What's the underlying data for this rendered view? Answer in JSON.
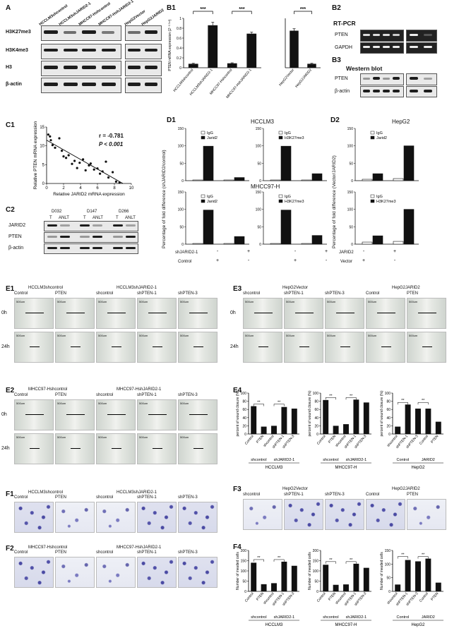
{
  "panels": {
    "A": {
      "label": "A",
      "blot_rows": [
        "H3K27me3",
        "H3K4me3",
        "H3",
        "β-actin"
      ],
      "lanes_left": [
        "HCCLM3shcontrol",
        "HCCLM3shJARID2-1",
        "MHCC97-Hshcontrol",
        "MHCC97-HshJARID2-1"
      ],
      "lanes_right": [
        "HepG2Vector",
        "HepG2JARID2"
      ]
    },
    "B1": {
      "label": "B1"
    },
    "B2": {
      "label": "B2",
      "title": "RT-PCR",
      "rows": [
        "PTEN",
        "GAPDH"
      ]
    },
    "B3": {
      "label": "B3",
      "title": "Western blot",
      "rows": [
        "PTEN",
        "β-actin"
      ]
    },
    "C1": {
      "label": "C1",
      "r_text": "r = -0.781",
      "p_text": "P < 0.001"
    },
    "C2": {
      "label": "C2",
      "groups": [
        "D032",
        "D147",
        "D266"
      ],
      "lanes": [
        "T",
        "ANLT",
        "T",
        "ANLT",
        "T",
        "ANLT"
      ],
      "rows": [
        "JARID2",
        "PTEN",
        "β-actin"
      ]
    },
    "D1": {
      "label": "D1",
      "title": "HCCLM3",
      "title2": "MHCC97-H",
      "ylabel": "Percentage of fold difference (shJARID2/control)",
      "row1": "shJARID2-1",
      "row2": "Control"
    },
    "D2": {
      "label": "D2",
      "title": "HepG2",
      "ylabel": "Percentage of fold difference (Vector/JARID2)",
      "row1": "JARID2",
      "row2": "Vector"
    },
    "E1": {
      "label": "E1",
      "header_left": "HCCLM3shcontrol",
      "header_right": "HCCLM3shJARID2-1",
      "cols": [
        "Control",
        "PTEN",
        "shcontrol",
        "shPTEN-1",
        "shPTEN-3"
      ]
    },
    "E2": {
      "label": "E2",
      "header_left": "MHCC97-Hshcontrol",
      "header_right": "MHCC97-HshJARID2-1",
      "cols": [
        "Control",
        "PTEN",
        "shcontrol",
        "shPTEN-1",
        "shPTEN-3"
      ]
    },
    "E3": {
      "label": "E3",
      "header_left": "HepG2Vector",
      "header_right": "HepG2JARID2",
      "cols": [
        "shcontrol",
        "shPTEN-1",
        "shPTEN-3",
        "Control",
        "PTEN"
      ]
    },
    "E4": {
      "label": "E4",
      "ylabel": "percent of wound closure (%)"
    },
    "F1": {
      "label": "F1",
      "header_left": "HCCLM3shcontrol",
      "header_right": "HCCLM3shJARID2-1",
      "cols": [
        "Control",
        "PTEN",
        "shcontrol",
        "shPTEN-1",
        "shPTEN-3"
      ]
    },
    "F2": {
      "label": "F2",
      "header_left": "MHCC97-Hshcontrol",
      "header_right": "MHCC97-HshJARID2-1",
      "cols": [
        "Control",
        "PTEN",
        "shcontrol",
        "shPTEN-1",
        "shPTEN-3"
      ]
    },
    "F3": {
      "label": "F3",
      "header_left": "HepG2Vector",
      "header_right": "HepG2JARID2",
      "cols": [
        "shcontrol",
        "shPTEN-1",
        "shPTEN-3",
        "Control",
        "PTEN"
      ]
    },
    "F4": {
      "label": "F4",
      "ylabel": "Number of invaded cells"
    },
    "time_labels": [
      "0h",
      "24h"
    ],
    "scale_text": "500um"
  },
  "chart_data": [
    {
      "id": "B1-left",
      "type": "bar",
      "categories": [
        "HCCLM3shcontrol",
        "HCCLM3shJARID2-1",
        "MHCC97-Hshcontrol",
        "MHCC97-HshJARID2-1"
      ],
      "values": [
        0.08,
        0.86,
        0.09,
        0.69
      ],
      "errors": [
        0.01,
        0.06,
        0.01,
        0.03
      ],
      "ylabel": "PTEN mRNA expression (2⁻ᐞᐞᶜᵗ)",
      "ylim": [
        0,
        1.0
      ],
      "yticks": [
        0.0,
        0.2,
        0.4,
        0.6,
        0.8,
        1.0
      ],
      "sig": [
        "***",
        "***"
      ]
    },
    {
      "id": "B1-right",
      "type": "bar",
      "categories": [
        "HepG2Vector",
        "HepG2JARID2"
      ],
      "values": [
        0.75,
        0.08
      ],
      "errors": [
        0.04,
        0.01
      ],
      "ylim": [
        0,
        1.0
      ],
      "sig": [
        "***"
      ]
    },
    {
      "id": "C1",
      "type": "scatter",
      "xlabel": "Relative JARID2 mRNA expression",
      "ylabel": "Relative PTEN mRNA expression",
      "xlim": [
        0,
        10
      ],
      "ylim": [
        0,
        15
      ],
      "xticks": [
        0,
        2,
        4,
        6,
        8,
        10
      ],
      "yticks": [
        0,
        5,
        10,
        15
      ],
      "x": [
        0.2,
        0.4,
        0.5,
        0.7,
        1.0,
        1.5,
        1.8,
        2.0,
        2.3,
        2.6,
        3.0,
        3.3,
        3.6,
        3.9,
        4.3,
        4.6,
        5.0,
        5.2,
        5.6,
        6.0,
        6.3,
        6.6,
        7.0,
        7.3,
        7.8,
        8.2,
        8.6
      ],
      "y": [
        13.0,
        12.5,
        11.5,
        10.2,
        9.5,
        12.0,
        8.7,
        7.2,
        6.8,
        7.5,
        5.2,
        6.0,
        4.1,
        5.5,
        6.4,
        3.5,
        4.8,
        5.3,
        3.7,
        4.0,
        2.6,
        3.2,
        5.8,
        1.6,
        3.0,
        0.5,
        0.2
      ],
      "fit": [
        [
          0,
          11.5
        ],
        [
          9,
          0
        ]
      ]
    },
    {
      "id": "D1-HCCLM3-Jarid2",
      "type": "bar",
      "series": [
        {
          "name": "IgG",
          "values": [
            2,
            2
          ]
        },
        {
          "name": "Jarid2",
          "values": [
            99,
            9
          ]
        }
      ],
      "categories": [
        "Control",
        "shJARID2-1"
      ],
      "ylim": [
        0,
        150
      ],
      "yticks": [
        0,
        50,
        100,
        150
      ]
    },
    {
      "id": "D1-HCCLM3-H3K27me3",
      "type": "bar",
      "series": [
        {
          "name": "IgG",
          "values": [
            2,
            2
          ]
        },
        {
          "name": "H3K27me3",
          "values": [
            99,
            20
          ]
        }
      ],
      "categories": [
        "Control",
        "shJARID2-1"
      ],
      "ylim": [
        0,
        150
      ],
      "yticks": [
        0,
        50,
        100,
        150
      ]
    },
    {
      "id": "D1-MHCC97H-Jarid2",
      "type": "bar",
      "series": [
        {
          "name": "IgG",
          "values": [
            2,
            2
          ]
        },
        {
          "name": "Jarid2",
          "values": [
            98,
            22
          ]
        }
      ],
      "categories": [
        "Control",
        "shJARID2-1"
      ],
      "ylim": [
        0,
        150
      ],
      "yticks": [
        0,
        50,
        100,
        150
      ]
    },
    {
      "id": "D1-MHCC97H-H3K27me3",
      "type": "bar",
      "series": [
        {
          "name": "IgG",
          "values": [
            2,
            2
          ]
        },
        {
          "name": "H3K27me3",
          "values": [
            98,
            25
          ]
        }
      ],
      "categories": [
        "Control",
        "shJARID2-1"
      ],
      "ylim": [
        0,
        150
      ],
      "yticks": [
        0,
        50,
        100,
        150
      ]
    },
    {
      "id": "D2-HepG2-Jarid2",
      "type": "bar",
      "series": [
        {
          "name": "IgG",
          "values": [
            4,
            6
          ]
        },
        {
          "name": "Jarid2",
          "values": [
            20,
            100
          ]
        }
      ],
      "categories": [
        "Vector",
        "JARID2"
      ],
      "ylim": [
        0,
        150
      ],
      "yticks": [
        0,
        50,
        100,
        150
      ]
    },
    {
      "id": "D2-HepG2-H3K27me3",
      "type": "bar",
      "series": [
        {
          "name": "IgG",
          "values": [
            6,
            8
          ]
        },
        {
          "name": "H3K27me3",
          "values": [
            24,
            100
          ]
        }
      ],
      "categories": [
        "Vector",
        "JARID2"
      ],
      "ylim": [
        0,
        150
      ],
      "yticks": [
        0,
        50,
        100,
        150
      ]
    },
    {
      "id": "E4-HCCLM3",
      "type": "bar",
      "categories": [
        "Control",
        "PTEN",
        "shcontrol",
        "shPTEN-1",
        "shPTEN-3"
      ],
      "values": [
        68,
        18,
        20,
        66,
        62
      ],
      "ylim": [
        0,
        100
      ],
      "yticks": [
        0,
        20,
        40,
        60,
        80,
        100
      ],
      "group": "HCCLM3",
      "subgroups": [
        "shcontrol",
        "shJARID2-1"
      ]
    },
    {
      "id": "E4-MHCC97H",
      "type": "bar",
      "categories": [
        "Control",
        "PTEN",
        "shcontrol",
        "shPTEN-1",
        "shPTEN-3"
      ],
      "values": [
        83,
        20,
        24,
        84,
        77
      ],
      "ylim": [
        0,
        100
      ],
      "yticks": [
        0,
        20,
        40,
        60,
        80,
        100
      ],
      "group": "MHCC97-H",
      "subgroups": [
        "shcontrol",
        "shJARID2-1"
      ]
    },
    {
      "id": "E4-HepG2",
      "type": "bar",
      "categories": [
        "shcontrol",
        "shPTEN-1",
        "shPTEN-3",
        "Control",
        "PTEN"
      ],
      "values": [
        18,
        72,
        62,
        62,
        30
      ],
      "ylim": [
        0,
        100
      ],
      "yticks": [
        0,
        20,
        40,
        60,
        80,
        100
      ],
      "group": "HepG2",
      "subgroups": [
        "Control",
        "JARID2"
      ]
    },
    {
      "id": "F4-HCCLM3",
      "type": "bar",
      "categories": [
        "Control",
        "PTEN",
        "shcontrol",
        "shPTEN-1",
        "shPTEN-3"
      ],
      "values": [
        140,
        35,
        40,
        145,
        125
      ],
      "ylim": [
        0,
        200
      ],
      "yticks": [
        0,
        50,
        100,
        150,
        200
      ],
      "group": "HCCLM3",
      "subgroups": [
        "shcontrol",
        "shJARID2-1"
      ]
    },
    {
      "id": "F4-MHCC97H",
      "type": "bar",
      "categories": [
        "Control",
        "PTEN",
        "shcontrol",
        "shPTEN-1",
        "shPTEN-3"
      ],
      "values": [
        130,
        32,
        34,
        135,
        115
      ],
      "ylim": [
        0,
        200
      ],
      "yticks": [
        0,
        50,
        100,
        150,
        200
      ],
      "group": "MHCC97-H",
      "subgroups": [
        "shcontrol",
        "shJARID2-1"
      ]
    },
    {
      "id": "F4-HepG2",
      "type": "bar",
      "categories": [
        "shcontrol",
        "shPTEN-1",
        "shPTEN-3",
        "Control",
        "PTEN"
      ],
      "values": [
        25,
        115,
        110,
        120,
        32
      ],
      "ylim": [
        0,
        150
      ],
      "yticks": [
        0,
        50,
        100,
        150
      ],
      "group": "HepG2",
      "subgroups": [
        "Control",
        "JARID2"
      ]
    }
  ]
}
